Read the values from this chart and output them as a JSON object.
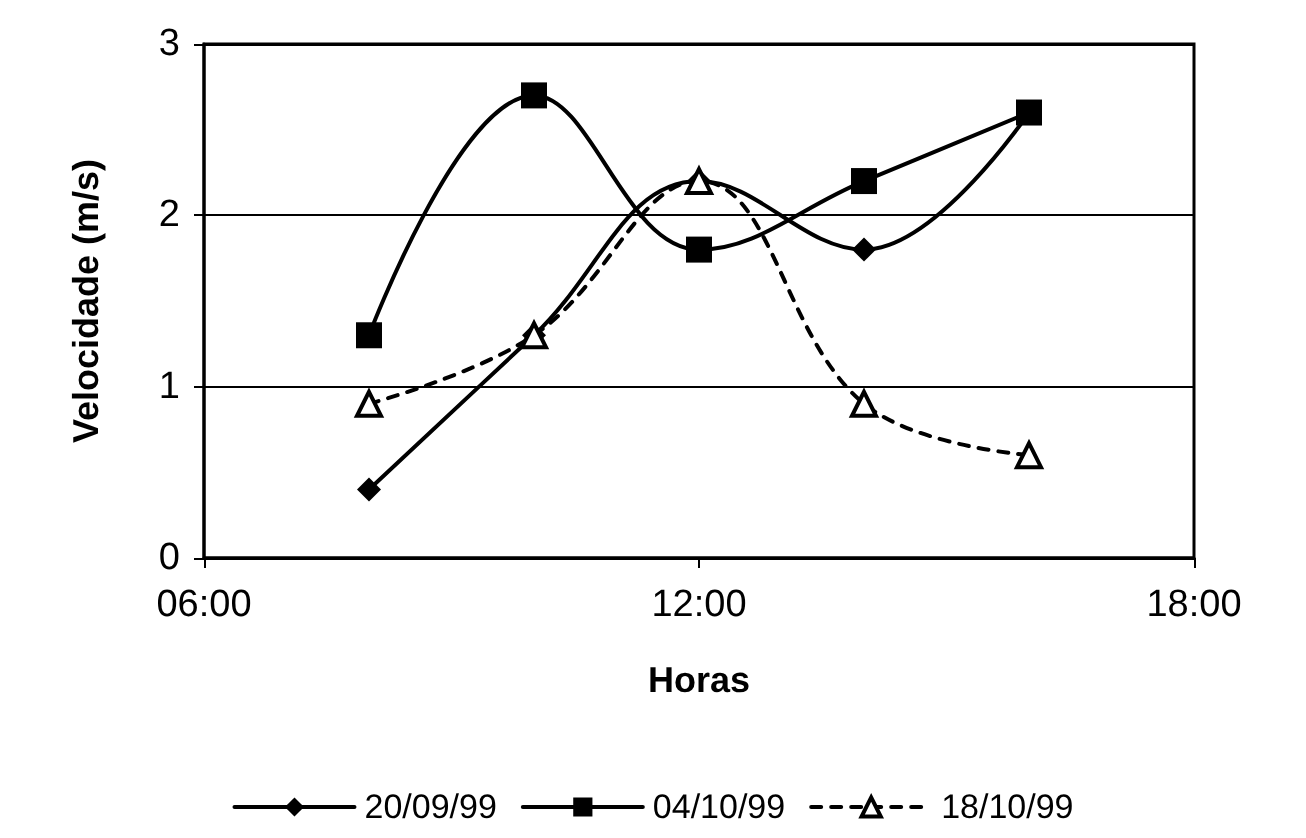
{
  "chart_data": {
    "type": "line",
    "xlabel": "Horas",
    "ylabel": "Velocidade (m/s)",
    "x": [
      8,
      10,
      12,
      14,
      16
    ],
    "xlim": [
      6,
      18
    ],
    "xticks": [
      {
        "value": 6,
        "label": "06:00"
      },
      {
        "value": 12,
        "label": "12:00"
      },
      {
        "value": 18,
        "label": "18:00"
      }
    ],
    "ylim": [
      0,
      3
    ],
    "yticks": [
      0,
      1,
      2,
      3
    ],
    "grid": "y",
    "legend": "bottom",
    "series": [
      {
        "name": "20/09/99",
        "color": "#000000",
        "marker": "diamond",
        "line_style": "solid",
        "values": [
          0.4,
          1.3,
          2.2,
          1.8,
          2.6
        ]
      },
      {
        "name": "04/10/99",
        "color": "#000000",
        "marker": "square",
        "line_style": "solid",
        "values": [
          1.3,
          2.7,
          1.8,
          2.2,
          2.6
        ]
      },
      {
        "name": "18/10/99",
        "color": "#000000",
        "marker": "triangle",
        "line_style": "dashed",
        "values": [
          0.9,
          1.3,
          2.2,
          0.9,
          0.6
        ]
      }
    ]
  }
}
